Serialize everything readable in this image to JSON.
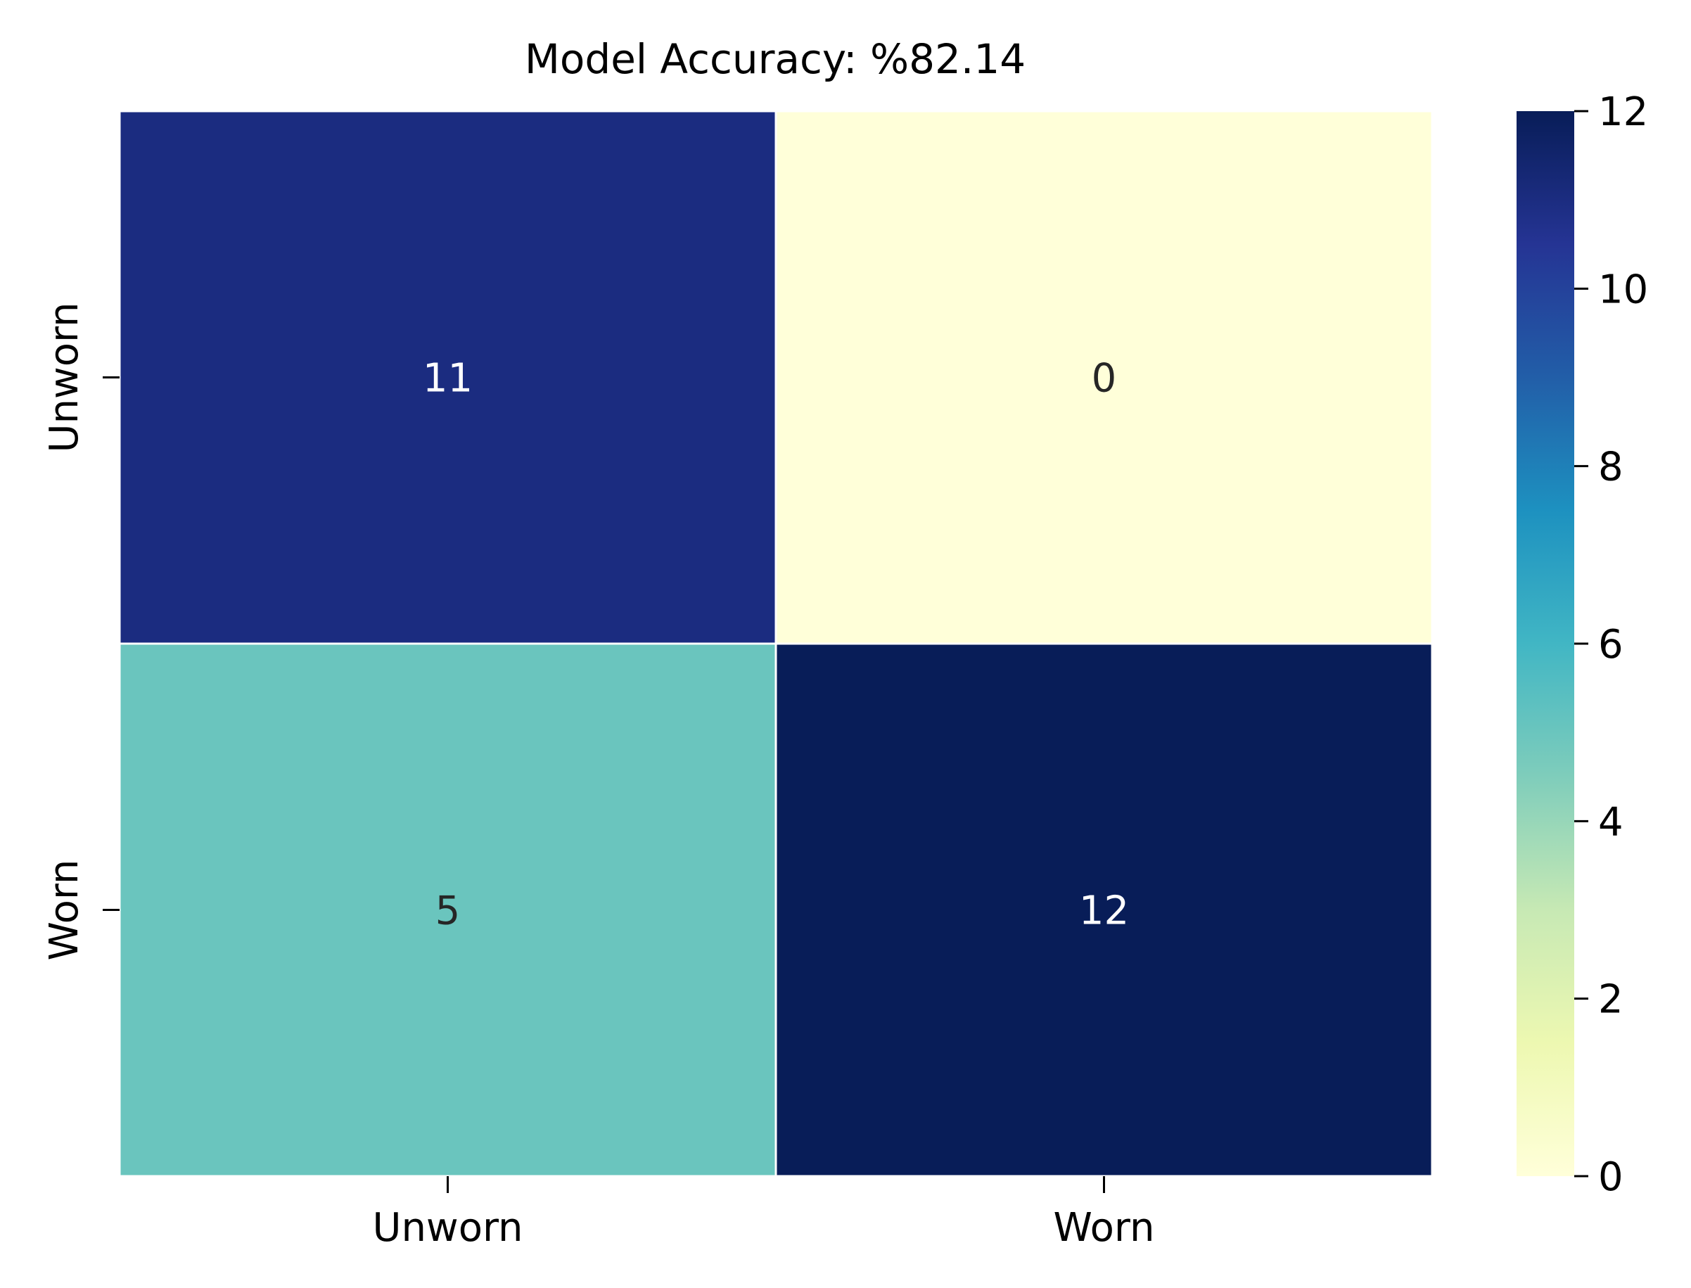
{
  "chart_data": {
    "type": "heatmap",
    "title": "Model Accuracy: %82.14",
    "xlabel": "",
    "ylabel": "",
    "x_categories": [
      "Unworn",
      "Worn"
    ],
    "y_categories": [
      "Unworn",
      "Worn"
    ],
    "values": [
      [
        11,
        0
      ],
      [
        5,
        12
      ]
    ],
    "cell_labels": [
      [
        "11",
        "0"
      ],
      [
        "5",
        "12"
      ]
    ],
    "colorbar": {
      "range": [
        0,
        12
      ],
      "ticks": [
        0,
        2,
        4,
        6,
        8,
        10,
        12
      ],
      "tick_labels": [
        "0",
        "2",
        "4",
        "6",
        "8",
        "10",
        "12"
      ],
      "colormap": "YlGnBu",
      "colors": [
        "#ffffd9",
        "#edf8b1",
        "#c7e9b4",
        "#7fcdbb",
        "#41b6c4",
        "#1d91c0",
        "#225ea8",
        "#253494",
        "#081d58"
      ]
    },
    "legend": "colorbar-right",
    "grid": false
  }
}
